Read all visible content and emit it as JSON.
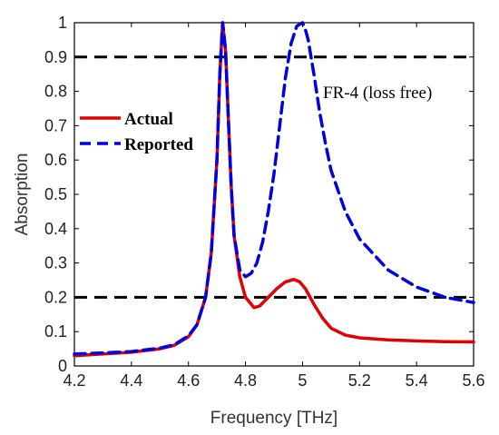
{
  "chart_data": {
    "type": "line",
    "xlabel": "Frequency [THz]",
    "ylabel": "Absorption",
    "xlim": [
      4.2,
      5.6
    ],
    "ylim": [
      0,
      1
    ],
    "xticks": [
      "4.2",
      "4.4",
      "4.6",
      "4.8",
      "5",
      "5.2",
      "5.4",
      "5.6"
    ],
    "yticks": [
      "0",
      "0.1",
      "0.2",
      "0.3",
      "0.4",
      "0.5",
      "0.6",
      "0.7",
      "0.8",
      "0.9",
      "1"
    ],
    "grid": false,
    "legend_position": "left",
    "annotation": "FR-4 (loss free)",
    "reference_lines": [
      {
        "y": 0.9,
        "style": "dashed",
        "color": "#000000"
      },
      {
        "y": 0.2,
        "style": "dashed",
        "color": "#000000"
      }
    ],
    "series": [
      {
        "name": "Actual",
        "color": "#e00000",
        "style": "solid",
        "x": [
          4.2,
          4.3,
          4.4,
          4.5,
          4.55,
          4.6,
          4.63,
          4.66,
          4.68,
          4.7,
          4.71,
          4.72,
          4.73,
          4.74,
          4.75,
          4.76,
          4.78,
          4.8,
          4.83,
          4.85,
          4.88,
          4.91,
          4.94,
          4.97,
          4.99,
          5.01,
          5.04,
          5.07,
          5.1,
          5.15,
          5.2,
          5.3,
          5.4,
          5.5,
          5.6
        ],
        "y": [
          0.03,
          0.035,
          0.04,
          0.05,
          0.06,
          0.085,
          0.12,
          0.2,
          0.33,
          0.6,
          0.85,
          1.0,
          0.92,
          0.72,
          0.52,
          0.38,
          0.26,
          0.2,
          0.17,
          0.175,
          0.2,
          0.225,
          0.245,
          0.252,
          0.245,
          0.225,
          0.18,
          0.14,
          0.11,
          0.09,
          0.082,
          0.076,
          0.073,
          0.071,
          0.07
        ]
      },
      {
        "name": "Reported",
        "color": "#0000e0",
        "style": "dashed",
        "x": [
          4.2,
          4.3,
          4.4,
          4.5,
          4.55,
          4.6,
          4.63,
          4.66,
          4.68,
          4.7,
          4.71,
          4.72,
          4.73,
          4.74,
          4.75,
          4.76,
          4.78,
          4.8,
          4.82,
          4.84,
          4.86,
          4.88,
          4.9,
          4.92,
          4.94,
          4.96,
          4.98,
          5.0,
          5.01,
          5.02,
          5.04,
          5.06,
          5.08,
          5.1,
          5.15,
          5.2,
          5.3,
          5.4,
          5.5,
          5.6
        ],
        "y": [
          0.035,
          0.038,
          0.042,
          0.052,
          0.062,
          0.088,
          0.12,
          0.2,
          0.33,
          0.6,
          0.85,
          1.0,
          0.92,
          0.72,
          0.52,
          0.38,
          0.28,
          0.26,
          0.27,
          0.3,
          0.36,
          0.45,
          0.56,
          0.7,
          0.84,
          0.94,
          0.99,
          1.0,
          0.98,
          0.95,
          0.85,
          0.74,
          0.65,
          0.57,
          0.45,
          0.37,
          0.28,
          0.23,
          0.2,
          0.185
        ]
      }
    ]
  }
}
